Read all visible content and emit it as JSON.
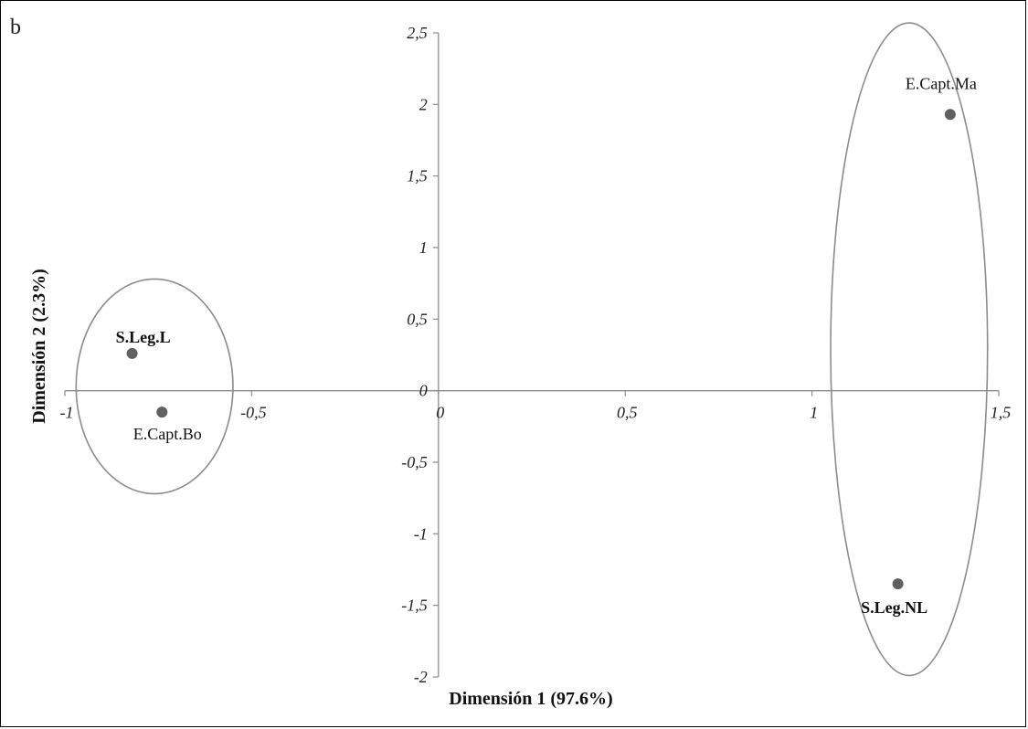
{
  "panel_letter": "b",
  "chart_data": {
    "type": "scatter",
    "title": "",
    "xlabel": "Dimensión 1 (97.6%)",
    "ylabel": "Dimensión 2 (2.3%)",
    "xlim": [
      -1,
      1.5
    ],
    "ylim": [
      -2,
      2.5
    ],
    "x_ticks": [
      {
        "value": -1,
        "label": "-1"
      },
      {
        "value": -0.5,
        "label": "-0,5"
      },
      {
        "value": 0,
        "label": "0"
      },
      {
        "value": 0.5,
        "label": "0,5"
      },
      {
        "value": 1,
        "label": "1"
      },
      {
        "value": 1.5,
        "label": "1,5"
      }
    ],
    "y_ticks": [
      {
        "value": 2.5,
        "label": "2,5"
      },
      {
        "value": 2,
        "label": "2"
      },
      {
        "value": 1.5,
        "label": "1,5"
      },
      {
        "value": 1,
        "label": "1"
      },
      {
        "value": 0.5,
        "label": "0,5"
      },
      {
        "value": 0,
        "label": "0"
      },
      {
        "value": -0.5,
        "label": "-0,5"
      },
      {
        "value": -1,
        "label": "-1"
      },
      {
        "value": -1.5,
        "label": "-1,5"
      },
      {
        "value": -2,
        "label": "-2"
      }
    ],
    "points": [
      {
        "label": "S.Leg.L",
        "x": -0.82,
        "y": 0.26,
        "bold": true
      },
      {
        "label": "E.Capt.Bo",
        "x": -0.74,
        "y": -0.15,
        "bold": false
      },
      {
        "label": "E.Capt.Ma",
        "x": 1.37,
        "y": 1.93,
        "bold": false
      },
      {
        "label": "S.Leg.NL",
        "x": 1.23,
        "y": -1.35,
        "bold": true
      }
    ],
    "groupings": [
      {
        "members": [
          "S.Leg.L",
          "E.Capt.Bo"
        ],
        "cx": -0.76,
        "cy": 0.03,
        "rx": 0.21,
        "ry": 0.75
      },
      {
        "members": [
          "E.Capt.Ma",
          "S.Leg.NL"
        ],
        "cx": 1.26,
        "cy": 0.29,
        "rx": 0.21,
        "ry": 2.28
      }
    ],
    "marker_color": "#606060",
    "axis_color": "#8c8c8c",
    "grid": false
  }
}
